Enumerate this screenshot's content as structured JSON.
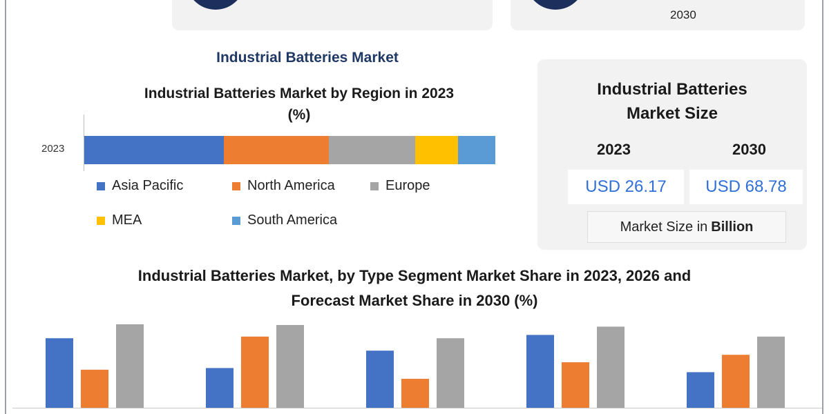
{
  "top_cards": [
    {
      "text": ""
    },
    {
      "text": "2030"
    }
  ],
  "section_title": "Industrial Batteries Market",
  "region_chart": {
    "title_line1": "Industrial Batteries Market by Region in 2023",
    "title_line2": "(%)",
    "year_label": "2023"
  },
  "size_card": {
    "title_line1": "Industrial Batteries",
    "title_line2": "Market Size",
    "years": [
      "2023",
      "2030"
    ],
    "values": [
      "USD 26.17",
      "USD 68.78"
    ],
    "unit_prefix": "Market Size in",
    "unit_bold": "Billion"
  },
  "segment_chart_title": {
    "line1": "Industrial Batteries Market, by Type Segment Market Share in 2023, 2026 and",
    "line2": "Forecast Market Share in 2030 (%)"
  },
  "chart_data": [
    {
      "type": "bar",
      "stacked": true,
      "orientation": "horizontal",
      "title": "Industrial Batteries Market by Region in 2023 (%)",
      "categories": [
        "2023"
      ],
      "series": [
        {
          "name": "Asia Pacific",
          "values": [
            34
          ],
          "color": "#4472c4"
        },
        {
          "name": "North America",
          "values": [
            25.5
          ],
          "color": "#ed7d31"
        },
        {
          "name": "Europe",
          "values": [
            21
          ],
          "color": "#a5a5a5"
        },
        {
          "name": "MEA",
          "values": [
            10.5
          ],
          "color": "#ffc000"
        },
        {
          "name": "South America",
          "values": [
            9
          ],
          "color": "#5b9bd5"
        }
      ],
      "xlim": [
        0,
        100
      ],
      "legend_position": "bottom"
    },
    {
      "type": "bar",
      "title": "Industrial Batteries Market, by Type Segment Market Share in 2023, 2026 and Forecast Market Share in 2030 (%)",
      "categories": [
        "",
        "",
        "",
        "",
        ""
      ],
      "series": [
        {
          "name": "",
          "values": [
            84,
            48,
            69,
            88,
            43
          ],
          "color": "#4472c4"
        },
        {
          "name": "",
          "values": [
            46,
            86,
            35,
            55,
            64
          ],
          "color": "#ed7d31"
        },
        {
          "name": "",
          "values": [
            101,
            100,
            84,
            98,
            86
          ],
          "color": "#a5a5a5"
        }
      ],
      "ylim": [
        0,
        100
      ],
      "grid": false
    }
  ]
}
